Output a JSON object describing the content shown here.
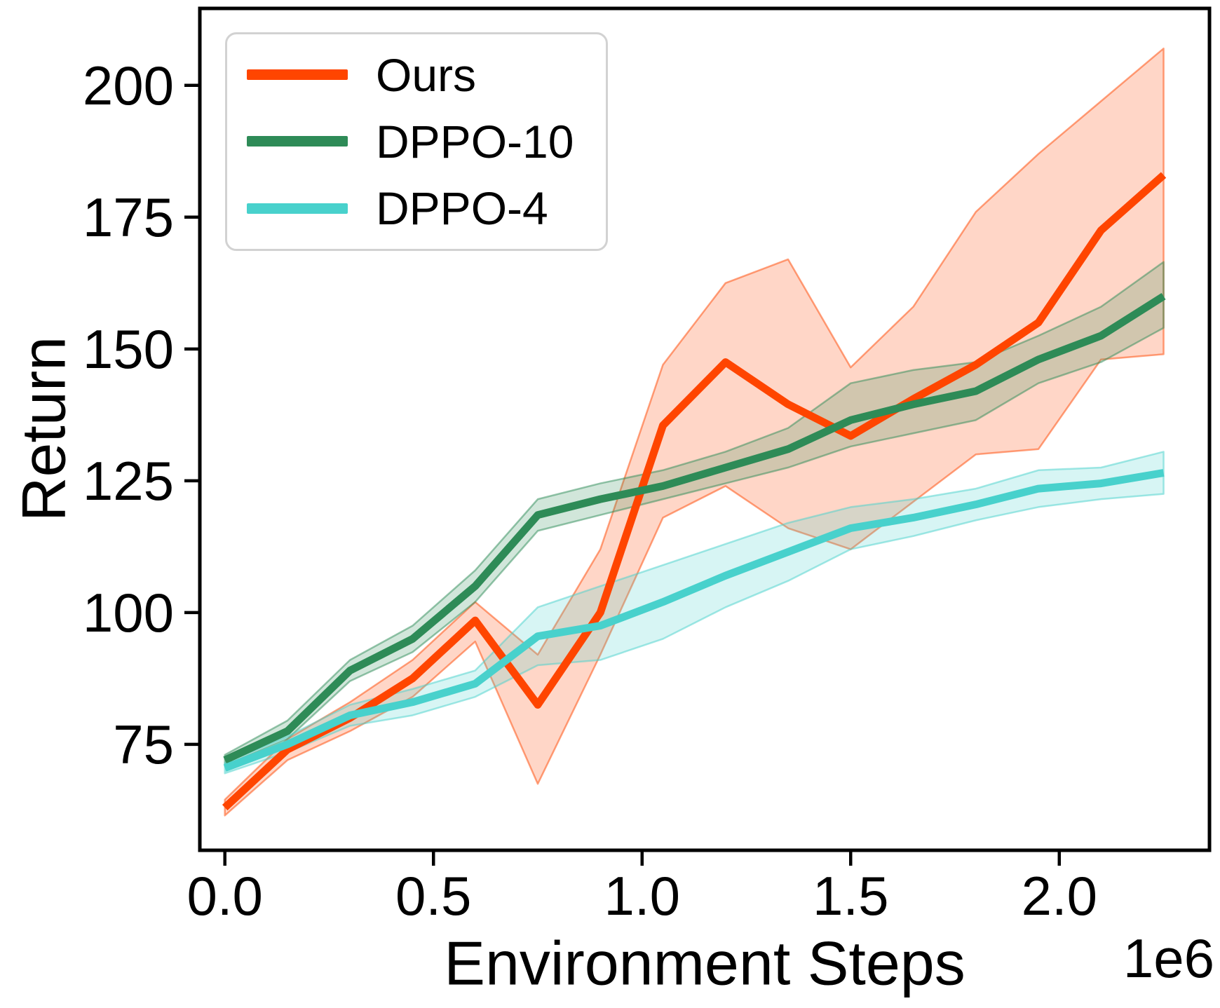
{
  "figure": {
    "background": "#ffffff",
    "ylabel": "Return",
    "xlabel": "Environment Steps",
    "x_offset_label": "1e6",
    "spine_color": "#000000",
    "tick_color": "#000000"
  },
  "legend": {
    "items": [
      {
        "label": "Ours",
        "color": "#FF4500"
      },
      {
        "label": "DPPO-10",
        "color": "#2E8B57"
      },
      {
        "label": "DPPO-4",
        "color": "#48D1CC"
      }
    ]
  },
  "chart_data": {
    "type": "line",
    "title": "",
    "xlabel": "Environment Steps",
    "ylabel": "Return",
    "x_units": "1e6 environment steps",
    "grid": false,
    "legend_position": "upper left",
    "xlim": [
      -0.06,
      2.36
    ],
    "ylim": [
      54.9,
      214.6
    ],
    "xticks": [
      {
        "value": 0.0,
        "label": "0.0"
      },
      {
        "value": 0.5,
        "label": "0.5"
      },
      {
        "value": 1.0,
        "label": "1.0"
      },
      {
        "value": 1.5,
        "label": "1.5"
      },
      {
        "value": 2.0,
        "label": "2.0"
      }
    ],
    "yticks": [
      {
        "value": 75,
        "label": "75"
      },
      {
        "value": 100,
        "label": "100"
      },
      {
        "value": 125,
        "label": "125"
      },
      {
        "value": 150,
        "label": "150"
      },
      {
        "value": 175,
        "label": "175"
      },
      {
        "value": 200,
        "label": "200"
      }
    ],
    "x": [
      0.0,
      0.15,
      0.3,
      0.45,
      0.6,
      0.75,
      0.9,
      1.05,
      1.2,
      1.35,
      1.5,
      1.65,
      1.8,
      1.95,
      2.1,
      2.25
    ],
    "series": [
      {
        "name": "Ours",
        "color": "#FF4500",
        "values": [
          63,
          74,
          80,
          87.5,
          98.5,
          82.5,
          100,
          135.5,
          147.5,
          139.5,
          133.5,
          140.5,
          147,
          155,
          172.5,
          183
        ],
        "band_lower": [
          61.5,
          72,
          77.5,
          84,
          94.5,
          67.5,
          92,
          118,
          124,
          116,
          112,
          121,
          130,
          131,
          148,
          149
        ],
        "band_upper": [
          64.5,
          76,
          83,
          91,
          102,
          92,
          112,
          147,
          162.5,
          167,
          146.5,
          158,
          176,
          187,
          197,
          207
        ]
      },
      {
        "name": "DPPO-10",
        "color": "#2E8B57",
        "values": [
          72,
          77.5,
          89,
          95,
          105,
          118.5,
          121.5,
          124,
          127.5,
          131,
          136.5,
          139.5,
          142,
          148,
          152.5,
          160
        ],
        "band_lower": [
          71,
          76,
          87,
          92.5,
          102,
          115.5,
          118.5,
          121.5,
          124.5,
          127.5,
          131.5,
          134,
          136.5,
          143.5,
          147.5,
          154
        ],
        "band_upper": [
          73,
          79.5,
          91,
          97.5,
          108,
          121.5,
          124.5,
          127,
          130.5,
          135,
          143.5,
          146,
          147.5,
          152.5,
          158,
          166.5
        ]
      },
      {
        "name": "DPPO-4",
        "color": "#48D1CC",
        "values": [
          70.5,
          75,
          80.5,
          83,
          86.5,
          95.5,
          97.5,
          102,
          107,
          111.5,
          116,
          118,
          120.5,
          123.5,
          124.5,
          126.5
        ],
        "band_lower": [
          69.5,
          73.5,
          78.5,
          80.5,
          84,
          90,
          91,
          95,
          101,
          106,
          112,
          114.5,
          117.5,
          120,
          121.5,
          122.5
        ],
        "band_upper": [
          71.5,
          76.5,
          82.5,
          85.5,
          89,
          101,
          105,
          109,
          113,
          117,
          120,
          121.5,
          123.5,
          127,
          127.5,
          130.5
        ]
      }
    ],
    "style": {
      "line_width": 11,
      "band_fill_opacity": 0.22,
      "band_edge_opacity": 0.5,
      "band_edge_width": 2.5
    }
  }
}
